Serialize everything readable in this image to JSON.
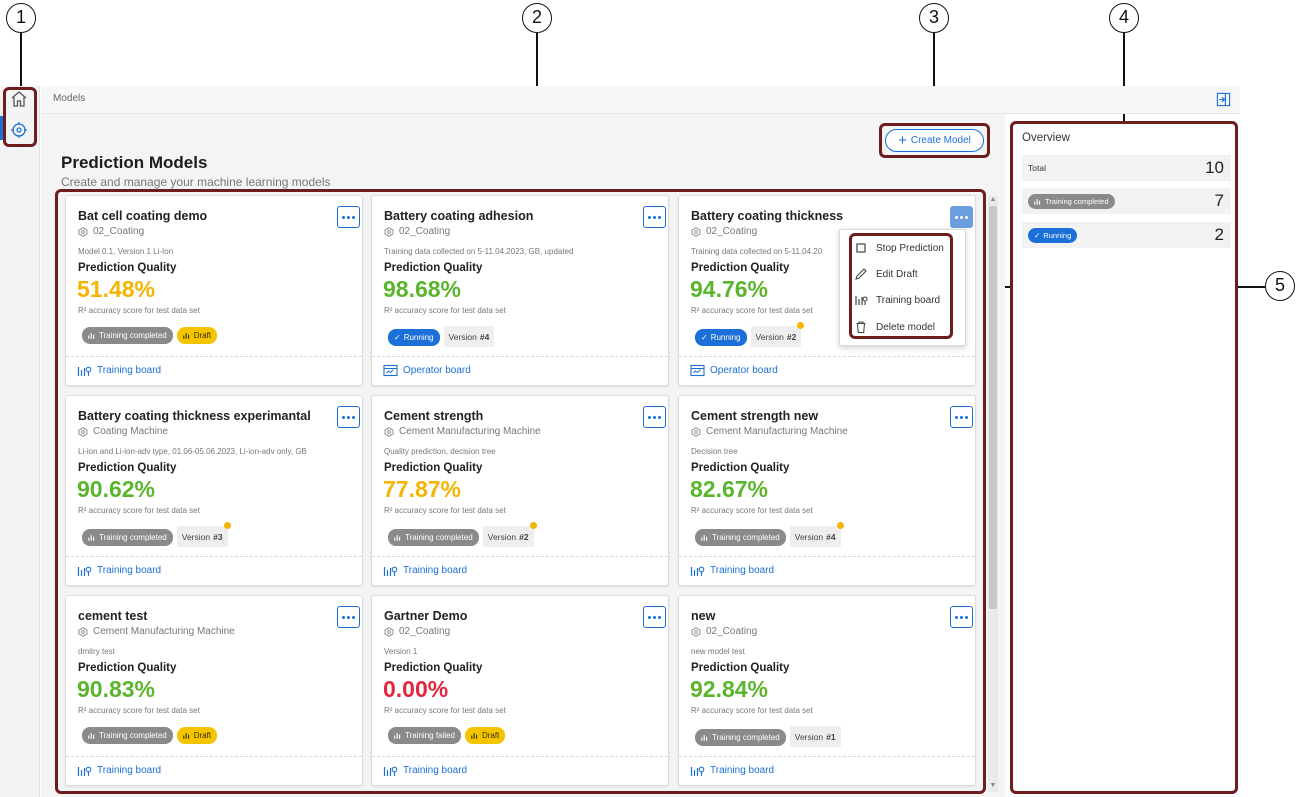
{
  "breadcrumb": "Models",
  "page": {
    "title": "Prediction Models",
    "subtitle": "Create and manage your machine learning models",
    "create_label": "Create Model"
  },
  "callouts": [
    "1",
    "2",
    "3",
    "4",
    "5"
  ],
  "cards": [
    {
      "name": "Bat cell coating demo",
      "machine": "02_Coating",
      "desc": "Model 0.1, Version 1 Li-Ion",
      "pq_label": "Prediction Quality",
      "pq_value": "51.48%",
      "pq_caption": "R² accuracy score for test data set",
      "status": "Training completed",
      "tag": "Draft",
      "link": "Training board"
    },
    {
      "name": "Battery coating adhesion",
      "machine": "02_Coating",
      "desc": "Training data collected on 5-11.04.2023, GB, updated",
      "pq_label": "Prediction Quality",
      "pq_value": "98.68%",
      "pq_caption": "R² accuracy score for test data set",
      "status": "Running",
      "version_label": "Version",
      "version_num": "#4",
      "link": "Operator board"
    },
    {
      "name": "Battery coating thickness",
      "machine": "02_Coating",
      "desc": "Training data collected on 5-11.04.20",
      "pq_label": "Prediction Quality",
      "pq_value": "94.76%",
      "pq_caption": "R² accuracy score for test data set",
      "status": "Running",
      "version_label": "Version",
      "version_num": "#2",
      "link": "Operator board"
    },
    {
      "name": "Battery coating thickness experimantal",
      "machine": "Coating Machine",
      "desc": "Li-ion and Li-ion-adv type, 01.06-05.06.2023, Li-ion-adv only, GB",
      "pq_label": "Prediction Quality",
      "pq_value": "90.62%",
      "pq_caption": "R² accuracy score for test data set",
      "status": "Training completed",
      "version_label": "Version",
      "version_num": "#3",
      "link": "Training board"
    },
    {
      "name": "Cement strength",
      "machine": "Cement Manufacturing Machine",
      "desc": "Quality prediction, decision tree",
      "pq_label": "Prediction Quality",
      "pq_value": "77.87%",
      "pq_caption": "R² accuracy score for test data set",
      "status": "Training completed",
      "version_label": "Version",
      "version_num": "#2",
      "link": "Training board"
    },
    {
      "name": "Cement strength new",
      "machine": "Cement Manufacturing Machine",
      "desc": "Decision tree",
      "pq_label": "Prediction Quality",
      "pq_value": "82.67%",
      "pq_caption": "R² accuracy score for test data set",
      "status": "Training completed",
      "version_label": "Version",
      "version_num": "#4",
      "link": "Training board"
    },
    {
      "name": "cement test",
      "machine": "Cement Manufacturing Machine",
      "desc": "dmitry test",
      "pq_label": "Prediction Quality",
      "pq_value": "90.83%",
      "pq_caption": "R² accuracy score for test data set",
      "status": "Training completed",
      "tag": "Draft",
      "link": "Training board"
    },
    {
      "name": "Gartner Demo",
      "machine": "02_Coating",
      "desc": "Version 1",
      "pq_label": "Prediction Quality",
      "pq_value": "0.00%",
      "pq_caption": "R² accuracy score for test data set",
      "status": "Training failed",
      "tag": "Draft",
      "link": "Training board"
    },
    {
      "name": "new",
      "machine": "02_Coating",
      "desc": "new model test",
      "pq_label": "Prediction Quality",
      "pq_value": "92.84%",
      "pq_caption": "R² accuracy score for test data set",
      "status": "Training completed",
      "version_label": "Version",
      "version_num": "#1",
      "link": "Training board"
    }
  ],
  "menu": {
    "stop": "Stop Prediction",
    "edit": "Edit Draft",
    "training": "Training board",
    "delete": "Delete model"
  },
  "overview": {
    "title": "Overview",
    "total_label": "Total",
    "total_value": "10",
    "completed_label": "Training completed",
    "completed_value": "7",
    "running_label": "Running",
    "running_value": "2"
  },
  "colors": {
    "accent": "#1b6fd8",
    "quality_low": "#f5b400",
    "quality_good": "#5ab52c",
    "quality_bad": "#e2273f",
    "highlight": "#6e1d1d",
    "draft": "#f5c400"
  }
}
